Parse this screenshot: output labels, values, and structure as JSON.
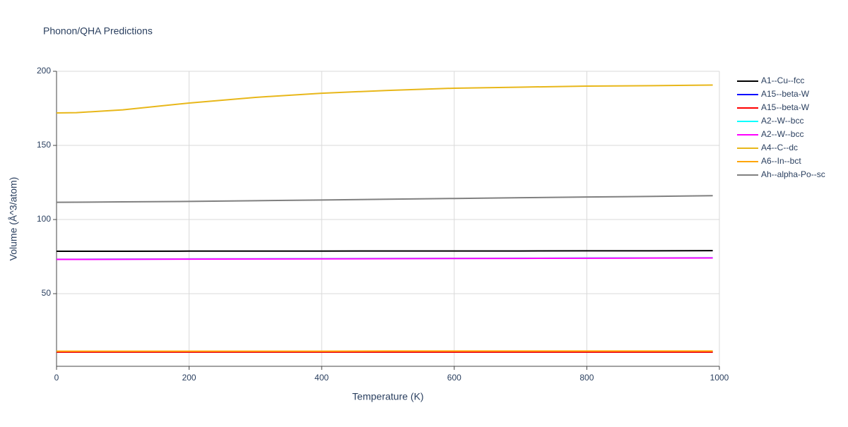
{
  "chart_data": {
    "type": "line",
    "title": "Phonon/QHA Predictions",
    "x_label": "Temperature (K)",
    "y_label": "Volume (Å^3/atom)",
    "x": [
      0,
      30,
      100,
      200,
      300,
      400,
      500,
      600,
      700,
      800,
      900,
      990
    ],
    "xlim": [
      0,
      1000
    ],
    "xticks": [
      0,
      200,
      400,
      600,
      800,
      1000
    ],
    "ylim": [
      1,
      200
    ],
    "yticks": [
      50,
      100,
      150,
      200
    ],
    "grid": true,
    "series": [
      {
        "name": "A1--Cu--fcc",
        "color": "#000000",
        "values": [
          78.6,
          78.6,
          78.6,
          78.7,
          78.7,
          78.7,
          78.8,
          78.8,
          78.8,
          78.9,
          78.9,
          79.0
        ]
      },
      {
        "name": "A15--beta-W",
        "color": "#0000ff",
        "values": [
          10.6,
          10.6,
          10.6,
          10.6,
          10.6,
          10.6,
          10.6,
          10.6,
          10.6,
          10.6,
          10.6,
          10.6
        ]
      },
      {
        "name": "A15--beta-W",
        "color": "#ff0000",
        "values": [
          10.6,
          10.6,
          10.6,
          10.6,
          10.6,
          10.6,
          10.6,
          10.6,
          10.6,
          10.6,
          10.6,
          10.6
        ]
      },
      {
        "name": "A2--W--bcc",
        "color": "#00ffff",
        "values": [
          73.2,
          73.2,
          73.3,
          73.4,
          73.5,
          73.6,
          73.7,
          73.8,
          73.9,
          74.0,
          74.1,
          74.2
        ]
      },
      {
        "name": "A2--W--bcc",
        "color": "#ff00ff",
        "values": [
          73.1,
          73.1,
          73.2,
          73.3,
          73.4,
          73.5,
          73.6,
          73.7,
          73.8,
          73.9,
          74.0,
          74.1
        ]
      },
      {
        "name": "A4--C--dc",
        "color": "#e8b71a",
        "values": [
          171.9,
          172.1,
          174.0,
          178.6,
          182.4,
          185.2,
          187.1,
          188.6,
          189.3,
          190.0,
          190.3,
          190.7
        ]
      },
      {
        "name": "A6--In--bct",
        "color": "#ffa500",
        "values": [
          11.2,
          11.2,
          11.2,
          11.2,
          11.2,
          11.2,
          11.3,
          11.3,
          11.3,
          11.3,
          11.3,
          11.3
        ]
      },
      {
        "name": "Ah--alpha-Po--sc",
        "color": "#808080",
        "values": [
          111.6,
          111.7,
          111.9,
          112.2,
          112.7,
          113.2,
          113.7,
          114.2,
          114.7,
          115.2,
          115.6,
          116.1
        ]
      }
    ]
  }
}
